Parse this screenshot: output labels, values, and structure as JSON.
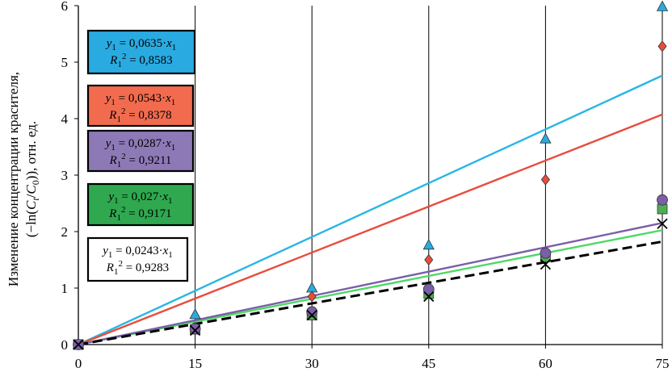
{
  "chart_data": {
    "type": "scatter",
    "ylabel_line1": "Изменение концентрации красителя,",
    "ylabel_line2_prefix": "(−ln(",
    "ylabel_line2_c": "C",
    "ylabel_line2_t": "t",
    "ylabel_line2_slash": "/",
    "ylabel_line2_c0": "C",
    "ylabel_line2_zero": "0",
    "ylabel_line2_suffix": ")), отн. ед.",
    "xlabel": "",
    "xlim": [
      0,
      75
    ],
    "ylim": [
      0,
      6
    ],
    "x_ticks": [
      0,
      15,
      30,
      45,
      60,
      75
    ],
    "y_ticks": [
      0,
      1,
      2,
      3,
      4,
      5,
      6
    ],
    "grid": "vertical",
    "series": [
      {
        "marker": "triangle",
        "color": "#29abe2",
        "x": [
          0,
          15,
          30,
          45,
          60,
          75
        ],
        "y": [
          0,
          0.53,
          1.0,
          1.76,
          3.64,
          5.98
        ],
        "fit_slope": 0.0635,
        "eq_slope": "0,0635",
        "eq_r2": "0,8583",
        "box_color": "#29abe2",
        "line_color": "#29b6e6",
        "line_style": "solid"
      },
      {
        "marker": "diamond",
        "color": "#e84c3d",
        "x": [
          0,
          15,
          30,
          45,
          60,
          75
        ],
        "y": [
          0,
          0.3,
          0.85,
          1.5,
          2.92,
          5.28
        ],
        "fit_slope": 0.0543,
        "eq_slope": "0,0543",
        "eq_r2": "0,8378",
        "box_color": "#f26b4e",
        "line_color": "#e84c3d",
        "line_style": "solid"
      },
      {
        "marker": "circle",
        "color": "#7b5ea8",
        "x": [
          0,
          15,
          30,
          45,
          60,
          75
        ],
        "y": [
          0,
          0.28,
          0.58,
          0.98,
          1.62,
          2.56
        ],
        "fit_slope": 0.0287,
        "eq_slope": "0,0287",
        "eq_r2": "0,9211",
        "box_color": "#8e79b7",
        "line_color": "#7b5ea8",
        "line_style": "solid"
      },
      {
        "marker": "square",
        "color": "#4caf50",
        "x": [
          0,
          15,
          30,
          45,
          60,
          75
        ],
        "y": [
          0,
          0.27,
          0.52,
          0.9,
          1.55,
          2.4
        ],
        "fit_slope": 0.027,
        "eq_slope": "0,027",
        "eq_r2": "0,9171",
        "box_color": "#2fa84f",
        "line_color": "#4cd964",
        "line_style": "solid"
      },
      {
        "marker": "cross",
        "color": "#000000",
        "x": [
          0,
          15,
          30,
          45,
          60,
          75
        ],
        "y": [
          0,
          0.25,
          0.52,
          0.85,
          1.42,
          2.14
        ],
        "fit_slope": 0.0243,
        "eq_slope": "0,0243",
        "eq_r2": "0,9283",
        "box_color": "#ffffff",
        "line_color": "#000000",
        "line_style": "dashed"
      }
    ]
  }
}
